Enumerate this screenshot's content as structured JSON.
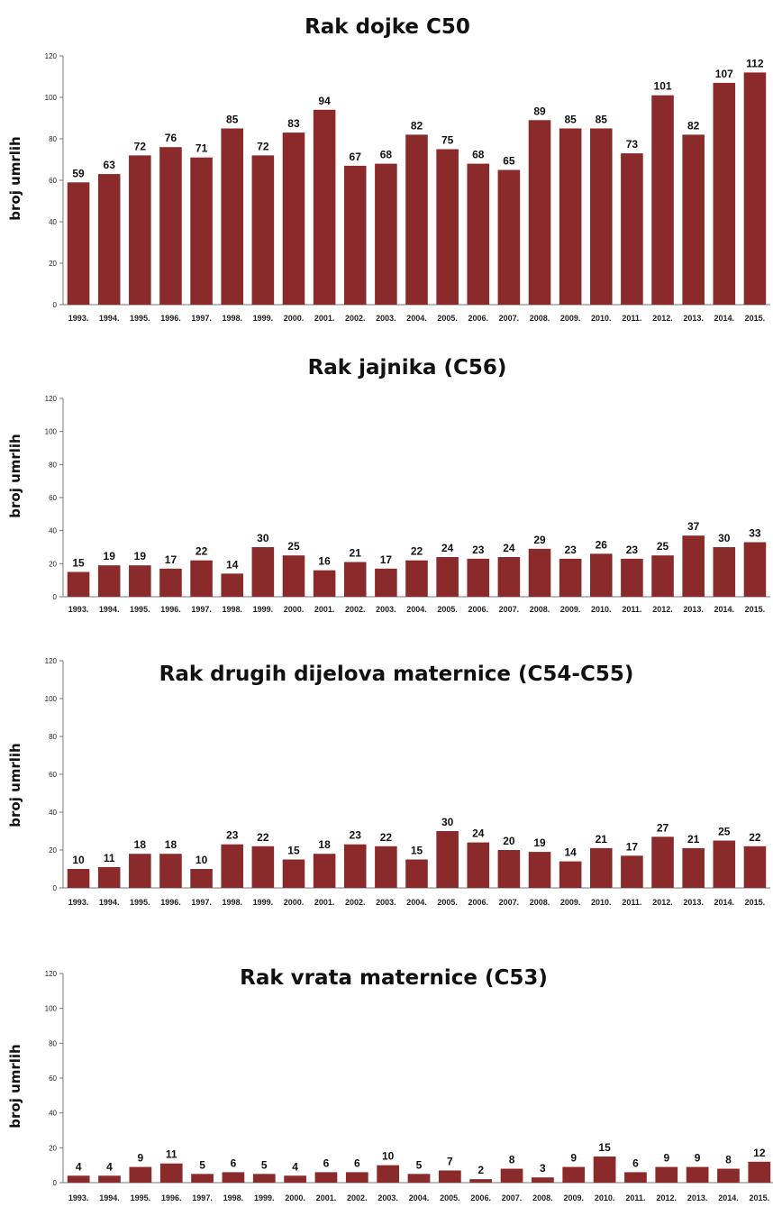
{
  "colors": {
    "bar": "#8b2a2a",
    "axis": "#777777",
    "text": "#111111"
  },
  "chart_data": [
    {
      "type": "bar",
      "title": "Rak dojke C50",
      "xlabel": "",
      "ylabel": "broj umrlih",
      "ylim": [
        0,
        120
      ],
      "yticks": [
        "0",
        "20",
        "40",
        "60",
        "80",
        "100",
        "120"
      ],
      "grid": false,
      "categories": [
        "1993.",
        "1994.",
        "1995.",
        "1996.",
        "1997.",
        "1998.",
        "1999.",
        "2000.",
        "2001.",
        "2002.",
        "2003.",
        "2004.",
        "2005.",
        "2006.",
        "2007.",
        "2008.",
        "2009.",
        "2010.",
        "2011.",
        "2012.",
        "2013.",
        "2014.",
        "2015."
      ],
      "values": [
        59,
        63,
        72,
        76,
        71,
        85,
        72,
        83,
        94,
        67,
        68,
        82,
        75,
        68,
        65,
        89,
        85,
        85,
        73,
        101,
        82,
        107,
        112
      ]
    },
    {
      "type": "bar",
      "title": "Rak jajnika (C56)",
      "xlabel": "",
      "ylabel": "broj umrlih",
      "ylim": [
        0,
        120
      ],
      "yticks": [
        "0",
        "20",
        "40",
        "60",
        "80",
        "100",
        "120"
      ],
      "grid": false,
      "categories": [
        "1993.",
        "1994.",
        "1995.",
        "1996.",
        "1997.",
        "1998.",
        "1999.",
        "2000.",
        "2001.",
        "2002.",
        "2003.",
        "2004.",
        "2005.",
        "2006.",
        "2007.",
        "2008.",
        "2009.",
        "2010.",
        "2011.",
        "2012.",
        "2013.",
        "2014.",
        "2015."
      ],
      "values": [
        15,
        19,
        19,
        17,
        22,
        14,
        30,
        25,
        16,
        21,
        17,
        22,
        24,
        23,
        24,
        29,
        23,
        26,
        23,
        25,
        37,
        30,
        33
      ]
    },
    {
      "type": "bar",
      "title": "Rak drugih dijelova maternice (C54-C55)",
      "xlabel": "",
      "ylabel": "broj umrlih",
      "ylim": [
        0,
        120
      ],
      "yticks": [
        "0",
        "20",
        "40",
        "60",
        "80",
        "100",
        "120"
      ],
      "grid": false,
      "categories": [
        "1993.",
        "1994.",
        "1995.",
        "1996.",
        "1997.",
        "1998.",
        "1999.",
        "2000.",
        "2001.",
        "2002.",
        "2003.",
        "2004.",
        "2005.",
        "2006.",
        "2007.",
        "2008.",
        "2009.",
        "2010.",
        "2011.",
        "2012.",
        "2013.",
        "2014.",
        "2015."
      ],
      "values": [
        10,
        11,
        18,
        18,
        10,
        23,
        22,
        15,
        18,
        23,
        22,
        15,
        30,
        24,
        20,
        19,
        14,
        21,
        17,
        27,
        21,
        25,
        22
      ]
    },
    {
      "type": "bar",
      "title": "Rak vrata maternice (C53)",
      "xlabel": "",
      "ylabel": "broj umrlih",
      "ylim": [
        0,
        120
      ],
      "yticks": [
        "0",
        "20",
        "40",
        "60",
        "80",
        "100",
        "120"
      ],
      "grid": false,
      "categories": [
        "1993.",
        "1994.",
        "1995.",
        "1996.",
        "1997.",
        "1998.",
        "1999.",
        "2000.",
        "2001.",
        "2002.",
        "2003.",
        "2004.",
        "2005.",
        "2006.",
        "2007.",
        "2008.",
        "2009.",
        "2010.",
        "2011.",
        "2012.",
        "2013.",
        "2014.",
        "2015."
      ],
      "values": [
        4,
        4,
        9,
        11,
        5,
        6,
        5,
        4,
        6,
        6,
        10,
        5,
        7,
        2,
        8,
        3,
        9,
        15,
        6,
        9,
        9,
        8,
        12
      ]
    }
  ]
}
